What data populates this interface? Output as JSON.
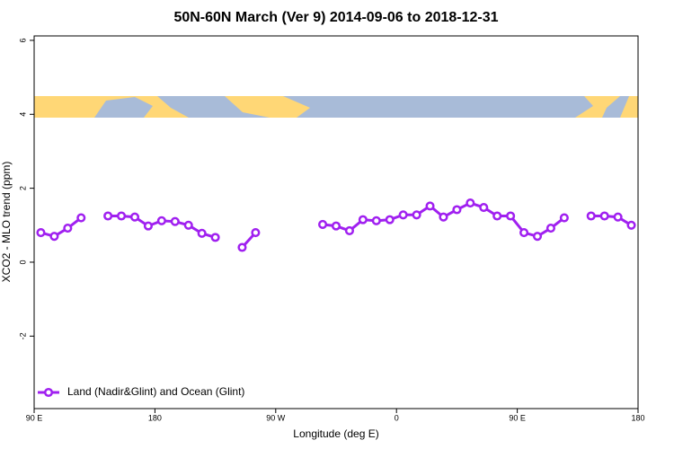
{
  "chart_data": {
    "type": "line",
    "title": "50N-60N March (Ver 9)   2014-09-06 to 2018-12-31",
    "xlabel": "Longitude (deg E)",
    "ylabel": "XCO2 - MLO trend (ppm)",
    "x": [
      95,
      105,
      115,
      125,
      135,
      145,
      155,
      165,
      175,
      185,
      195,
      205,
      215,
      225,
      235,
      245,
      255,
      265,
      275,
      285,
      295,
      305,
      315,
      325,
      335,
      345,
      355,
      365,
      375,
      385,
      395,
      405,
      415,
      425,
      435,
      445,
      455,
      465,
      475,
      485,
      495,
      505,
      515,
      525,
      535
    ],
    "series": [
      {
        "name": "Land (Nadir&Glint) and Ocean (Glint)",
        "color": "#a020f0",
        "values": [
          0.8,
          0.7,
          0.92,
          1.2,
          null,
          1.25,
          1.25,
          1.22,
          0.98,
          1.12,
          1.1,
          1.0,
          0.78,
          0.67,
          null,
          0.4,
          0.8,
          null,
          null,
          null,
          null,
          1.02,
          0.98,
          0.85,
          1.15,
          1.12,
          1.15,
          1.28,
          1.28,
          1.52,
          1.22,
          1.42,
          1.6,
          1.48,
          1.25,
          1.25,
          0.8,
          0.7,
          0.92,
          1.2,
          null,
          1.25,
          1.25,
          1.22,
          1.0
        ]
      }
    ],
    "xlim": [
      90,
      540
    ],
    "xticks": [
      {
        "value": 90,
        "label": "90 E"
      },
      {
        "value": 180,
        "label": "180"
      },
      {
        "value": 270,
        "label": "90 W"
      },
      {
        "value": 360,
        "label": "0"
      },
      {
        "value": 450,
        "label": "90 E"
      },
      {
        "value": 540,
        "label": "180"
      }
    ],
    "ylim": [
      -3.96,
      6.12
    ],
    "yticks": [
      -2,
      0,
      2,
      4,
      6
    ],
    "legend_position": "lower left"
  }
}
